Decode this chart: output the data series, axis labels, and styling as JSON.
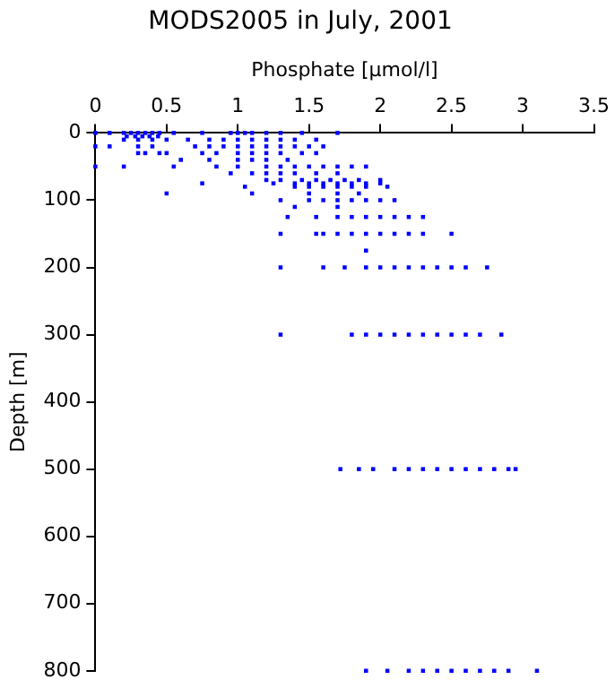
{
  "chart_data": {
    "type": "scatter",
    "title": "MODS2005 in July, 2001",
    "xlabel": "Phosphate [µmol/l]",
    "ylabel": "Depth [m]",
    "xlim": [
      0,
      3.5
    ],
    "xticks": [
      0,
      0.5,
      1,
      1.5,
      2,
      2.5,
      3,
      3.5
    ],
    "ylim": [
      800,
      0
    ],
    "yticks": [
      0,
      100,
      200,
      300,
      400,
      500,
      600,
      700,
      800
    ],
    "grid": false,
    "legend": false,
    "marker": "square",
    "series": [
      {
        "color": "#0000ff",
        "x": [
          0,
          0.1,
          0.2,
          0.25,
          0.3,
          0.35,
          0.4,
          0.45,
          0.55,
          0.75,
          0.95,
          1,
          1.05,
          1.1,
          1.2,
          1.3,
          1.45,
          1.7,
          0.22,
          0.28,
          0.33,
          0.38,
          0.44,
          0.2,
          0.3,
          0.4,
          0.5,
          0.65,
          0.8,
          0.9,
          1,
          1.1,
          1.2,
          1.3,
          1.4,
          1.55,
          0,
          0.1,
          0.3,
          0.4,
          0.7,
          0.8,
          0.9,
          1,
          1.1,
          1.2,
          1.3,
          1.4,
          1.5,
          1.6,
          0.3,
          0.35,
          0.45,
          0.5,
          0.75,
          0.85,
          1,
          1.1,
          1.2,
          1.3,
          1.45,
          1.55,
          0.6,
          0.8,
          1,
          1.1,
          1.2,
          1.35,
          0,
          0.2,
          0.55,
          0.85,
          1,
          1.2,
          1.3,
          1.4,
          1.5,
          1.6,
          1.7,
          1.8,
          1.9,
          0.95,
          1.1,
          1.2,
          1.3,
          1.4,
          1.55,
          1.7,
          1.2,
          1.3,
          1.45,
          1.55,
          1.65,
          1.75,
          1.85,
          2,
          0.75,
          1.25,
          1.4,
          1.5,
          1.6,
          1.7,
          1.8,
          1.9,
          2,
          1.05,
          1.4,
          1.5,
          1.6,
          1.7,
          1.8,
          1.9,
          2.05,
          0.5,
          1.1,
          1.5,
          1.7,
          1.85,
          1.3,
          1.5,
          1.6,
          1.7,
          1.8,
          1.9,
          2,
          2.1,
          1.4,
          1.7,
          1.35,
          1.55,
          1.7,
          1.8,
          1.9,
          2,
          2.1,
          2.2,
          2.3,
          1.3,
          1.55,
          1.6,
          1.7,
          1.8,
          1.9,
          2,
          2.1,
          2.2,
          2.3,
          2.5,
          1.9,
          1.3,
          1.6,
          1.75,
          1.9,
          2,
          2.1,
          2.2,
          2.3,
          2.4,
          2.5,
          2.6,
          2.75,
          1.3,
          1.8,
          1.9,
          2,
          2.1,
          2.2,
          2.3,
          2.4,
          2.5,
          2.6,
          2.7,
          2.85,
          1.72,
          1.85,
          1.95,
          2.1,
          2.2,
          2.3,
          2.4,
          2.5,
          2.6,
          2.7,
          2.8,
          2.9,
          2.95,
          1.9,
          2.05,
          2.2,
          2.3,
          2.4,
          2.5,
          2.6,
          2.7,
          2.8,
          2.9,
          3.1
        ],
        "values": [
          0,
          0,
          0,
          0,
          0,
          0,
          0,
          0,
          0,
          0,
          0,
          0,
          0,
          0,
          0,
          0,
          0,
          0,
          5,
          5,
          5,
          5,
          5,
          10,
          10,
          10,
          10,
          10,
          10,
          10,
          10,
          10,
          10,
          10,
          10,
          10,
          20,
          20,
          20,
          20,
          20,
          20,
          20,
          20,
          20,
          20,
          20,
          20,
          20,
          20,
          30,
          30,
          30,
          30,
          30,
          30,
          30,
          30,
          30,
          30,
          30,
          30,
          40,
          40,
          40,
          40,
          40,
          40,
          50,
          50,
          50,
          50,
          50,
          50,
          50,
          50,
          50,
          50,
          50,
          50,
          50,
          60,
          60,
          60,
          60,
          60,
          60,
          60,
          70,
          70,
          70,
          70,
          70,
          70,
          70,
          70,
          75,
          75,
          75,
          75,
          75,
          75,
          75,
          75,
          75,
          80,
          80,
          80,
          80,
          80,
          80,
          80,
          80,
          90,
          90,
          90,
          90,
          90,
          100,
          100,
          100,
          100,
          100,
          100,
          100,
          100,
          110,
          110,
          125,
          125,
          125,
          125,
          125,
          125,
          125,
          125,
          125,
          150,
          150,
          150,
          150,
          150,
          150,
          150,
          150,
          150,
          150,
          150,
          175,
          200,
          200,
          200,
          200,
          200,
          200,
          200,
          200,
          200,
          200,
          200,
          200,
          300,
          300,
          300,
          300,
          300,
          300,
          300,
          300,
          300,
          300,
          300,
          300,
          500,
          500,
          500,
          500,
          500,
          500,
          500,
          500,
          500,
          500,
          500,
          500,
          500,
          800,
          800,
          800,
          800,
          800,
          800,
          800,
          800,
          800,
          800,
          800
        ]
      }
    ]
  }
}
